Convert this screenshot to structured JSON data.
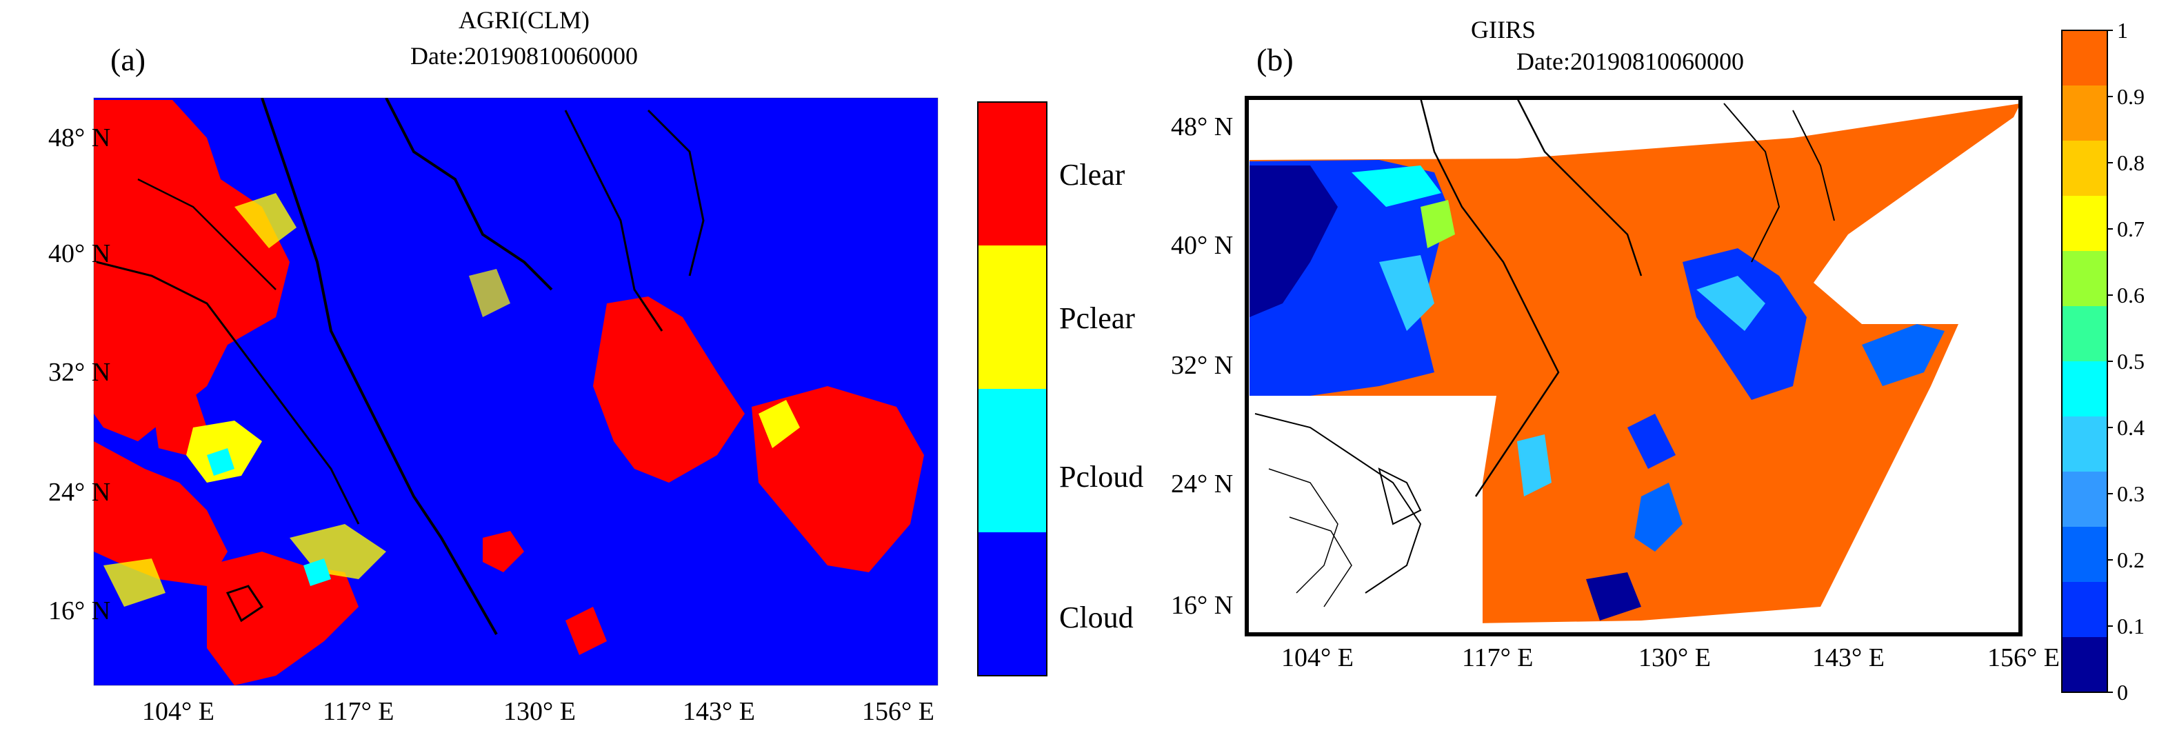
{
  "panel_a": {
    "label": "(a)",
    "title": "AGRI(CLM)",
    "date": "Date:20190810060000",
    "lat_ticks": [
      "48° N",
      "40° N",
      "32° N",
      "24° N",
      "16° N"
    ],
    "lon_ticks": [
      "104° E",
      "117° E",
      "130° E",
      "143° E",
      "156° E"
    ],
    "legend": [
      {
        "name": "Clear",
        "color": "#ff0000"
      },
      {
        "name": "Pclear",
        "color": "#ffff00"
      },
      {
        "name": "Pcloud",
        "color": "#00ffff"
      },
      {
        "name": "Cloud",
        "color": "#0000ff"
      }
    ]
  },
  "panel_b": {
    "label": "(b)",
    "title": "GIIRS",
    "date": "Date:20190810060000",
    "lat_ticks": [
      "48° N",
      "40° N",
      "32° N",
      "24° N",
      "16° N"
    ],
    "lon_ticks": [
      "104° E",
      "117° E",
      "130° E",
      "143° E",
      "156° E"
    ],
    "colorbar_ticks": [
      "1",
      "0.9",
      "0.8",
      "0.7",
      "0.6",
      "0.5",
      "0.4",
      "0.3",
      "0.2",
      "0.1",
      "0"
    ],
    "colorbar_colors": [
      "#ff6600",
      "#ff9900",
      "#ffcc00",
      "#ffff00",
      "#99ff33",
      "#33ff99",
      "#00ffff",
      "#33ccff",
      "#3399ff",
      "#0066ff",
      "#0033ff",
      "#000099"
    ]
  }
}
